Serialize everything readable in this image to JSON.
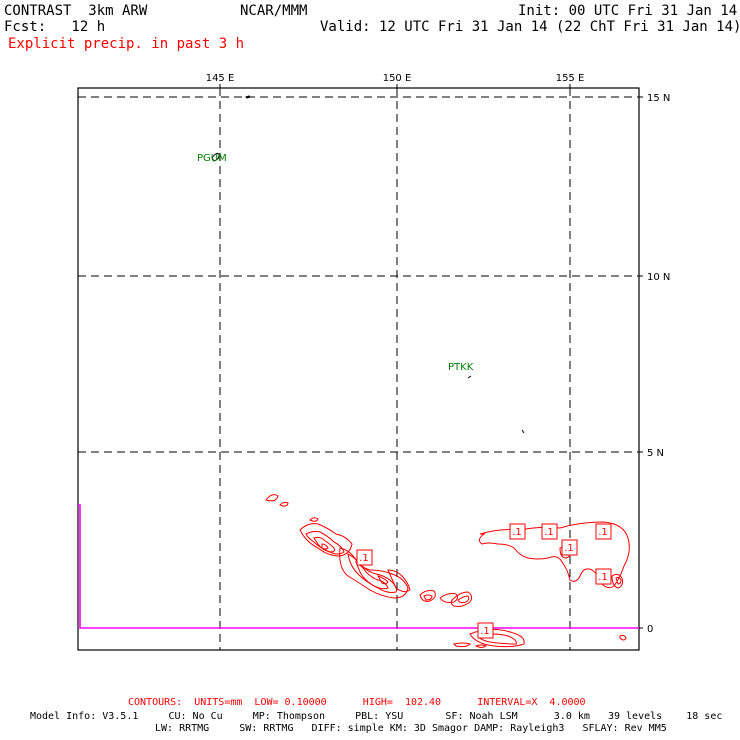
{
  "header": {
    "model": "CONTRAST  3km ARW",
    "center": "NCAR/MMM",
    "init": "Init: 00 UTC Fri 31 Jan 14",
    "fcst": "Fcst:   12 h",
    "valid": "Valid: 12 UTC Fri 31 Jan 14 (22 ChT Fri 31 Jan 14)",
    "field": "Explicit precip. in past 3 h"
  },
  "map": {
    "lon_labels": [
      "145 E",
      "150 E",
      "155 E"
    ],
    "lat_labels": [
      "15 N",
      "10 N",
      "5 N",
      "0"
    ],
    "stations": [
      {
        "id": "PGUM",
        "lon": 144.8,
        "lat": 13.5
      },
      {
        "id": "PTKK",
        "lon": 151.8,
        "lat": 7.4
      }
    ],
    "contour_labels": [
      ".1",
      ".1",
      ".1",
      ".1",
      ".1",
      ".1",
      ".1"
    ],
    "colors": {
      "contour": "#ff0000",
      "station": "#008000",
      "boundary": "#ff00ff",
      "grid": "#000000"
    }
  },
  "footer": {
    "contours": "CONTOURS:  UNITS=mm  LOW= 0.10000      HIGH=  102.40      INTERVAL=X  4.0000",
    "model_info_1": "Model Info: V3.5.1     CU: No Cu     MP: Thompson     PBL: YSU       SF: Noah LSM      3.0 km   39 levels    18 sec",
    "model_info_2": "LW: RRTMG     SW: RRTMG   DIFF: simple KM: 3D Smagor DAMP: Rayleigh3   SFLAY: Rev MM5"
  }
}
